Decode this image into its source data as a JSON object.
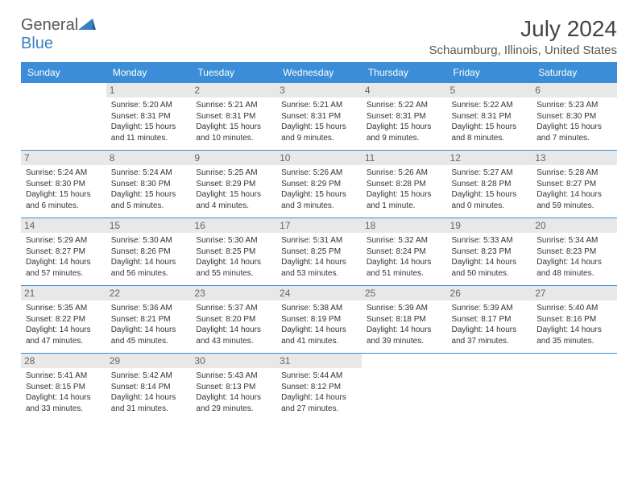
{
  "brand": {
    "text1": "General",
    "text2": "Blue"
  },
  "title": "July 2024",
  "location": "Schaumburg, Illinois, United States",
  "colors": {
    "header_bg": "#3a8dd6",
    "header_fg": "#ffffff",
    "daynum_bg": "#e8e8e8",
    "rule": "#3a8dd6",
    "brand_blue": "#3a7fc4",
    "text": "#333333"
  },
  "weekdays": [
    "Sunday",
    "Monday",
    "Tuesday",
    "Wednesday",
    "Thursday",
    "Friday",
    "Saturday"
  ],
  "weeks": [
    [
      null,
      {
        "n": "1",
        "sr": "5:20 AM",
        "ss": "8:31 PM",
        "dl": "15 hours and 11 minutes."
      },
      {
        "n": "2",
        "sr": "5:21 AM",
        "ss": "8:31 PM",
        "dl": "15 hours and 10 minutes."
      },
      {
        "n": "3",
        "sr": "5:21 AM",
        "ss": "8:31 PM",
        "dl": "15 hours and 9 minutes."
      },
      {
        "n": "4",
        "sr": "5:22 AM",
        "ss": "8:31 PM",
        "dl": "15 hours and 9 minutes."
      },
      {
        "n": "5",
        "sr": "5:22 AM",
        "ss": "8:31 PM",
        "dl": "15 hours and 8 minutes."
      },
      {
        "n": "6",
        "sr": "5:23 AM",
        "ss": "8:30 PM",
        "dl": "15 hours and 7 minutes."
      }
    ],
    [
      {
        "n": "7",
        "sr": "5:24 AM",
        "ss": "8:30 PM",
        "dl": "15 hours and 6 minutes."
      },
      {
        "n": "8",
        "sr": "5:24 AM",
        "ss": "8:30 PM",
        "dl": "15 hours and 5 minutes."
      },
      {
        "n": "9",
        "sr": "5:25 AM",
        "ss": "8:29 PM",
        "dl": "15 hours and 4 minutes."
      },
      {
        "n": "10",
        "sr": "5:26 AM",
        "ss": "8:29 PM",
        "dl": "15 hours and 3 minutes."
      },
      {
        "n": "11",
        "sr": "5:26 AM",
        "ss": "8:28 PM",
        "dl": "15 hours and 1 minute."
      },
      {
        "n": "12",
        "sr": "5:27 AM",
        "ss": "8:28 PM",
        "dl": "15 hours and 0 minutes."
      },
      {
        "n": "13",
        "sr": "5:28 AM",
        "ss": "8:27 PM",
        "dl": "14 hours and 59 minutes."
      }
    ],
    [
      {
        "n": "14",
        "sr": "5:29 AM",
        "ss": "8:27 PM",
        "dl": "14 hours and 57 minutes."
      },
      {
        "n": "15",
        "sr": "5:30 AM",
        "ss": "8:26 PM",
        "dl": "14 hours and 56 minutes."
      },
      {
        "n": "16",
        "sr": "5:30 AM",
        "ss": "8:25 PM",
        "dl": "14 hours and 55 minutes."
      },
      {
        "n": "17",
        "sr": "5:31 AM",
        "ss": "8:25 PM",
        "dl": "14 hours and 53 minutes."
      },
      {
        "n": "18",
        "sr": "5:32 AM",
        "ss": "8:24 PM",
        "dl": "14 hours and 51 minutes."
      },
      {
        "n": "19",
        "sr": "5:33 AM",
        "ss": "8:23 PM",
        "dl": "14 hours and 50 minutes."
      },
      {
        "n": "20",
        "sr": "5:34 AM",
        "ss": "8:23 PM",
        "dl": "14 hours and 48 minutes."
      }
    ],
    [
      {
        "n": "21",
        "sr": "5:35 AM",
        "ss": "8:22 PM",
        "dl": "14 hours and 47 minutes."
      },
      {
        "n": "22",
        "sr": "5:36 AM",
        "ss": "8:21 PM",
        "dl": "14 hours and 45 minutes."
      },
      {
        "n": "23",
        "sr": "5:37 AM",
        "ss": "8:20 PM",
        "dl": "14 hours and 43 minutes."
      },
      {
        "n": "24",
        "sr": "5:38 AM",
        "ss": "8:19 PM",
        "dl": "14 hours and 41 minutes."
      },
      {
        "n": "25",
        "sr": "5:39 AM",
        "ss": "8:18 PM",
        "dl": "14 hours and 39 minutes."
      },
      {
        "n": "26",
        "sr": "5:39 AM",
        "ss": "8:17 PM",
        "dl": "14 hours and 37 minutes."
      },
      {
        "n": "27",
        "sr": "5:40 AM",
        "ss": "8:16 PM",
        "dl": "14 hours and 35 minutes."
      }
    ],
    [
      {
        "n": "28",
        "sr": "5:41 AM",
        "ss": "8:15 PM",
        "dl": "14 hours and 33 minutes."
      },
      {
        "n": "29",
        "sr": "5:42 AM",
        "ss": "8:14 PM",
        "dl": "14 hours and 31 minutes."
      },
      {
        "n": "30",
        "sr": "5:43 AM",
        "ss": "8:13 PM",
        "dl": "14 hours and 29 minutes."
      },
      {
        "n": "31",
        "sr": "5:44 AM",
        "ss": "8:12 PM",
        "dl": "14 hours and 27 minutes."
      },
      null,
      null,
      null
    ]
  ],
  "labels": {
    "sunrise": "Sunrise:",
    "sunset": "Sunset:",
    "daylight": "Daylight:"
  }
}
